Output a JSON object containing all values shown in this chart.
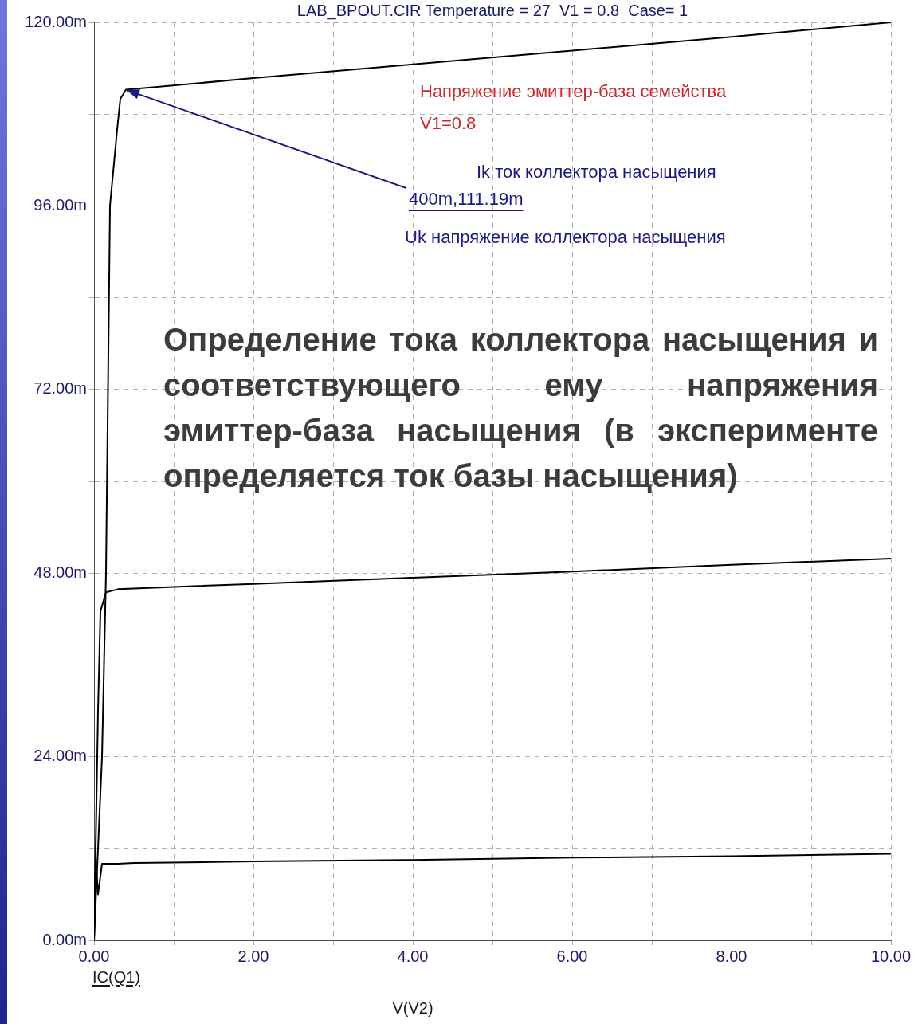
{
  "chart_data": {
    "type": "line",
    "title": "LAB_BPOUT.CIR Temperature = 27  V1 = 0.8  Case= 1",
    "xlabel": "V(V2)",
    "series": [
      {
        "color": "#000000",
        "x": [
          0,
          0.1,
          0.15,
          0.2,
          0.29,
          0.33,
          0.4,
          2,
          4,
          6,
          8,
          10
        ],
        "values": [
          0,
          24,
          48,
          96,
          106,
          110,
          111.19,
          112.7,
          114.5,
          116.3,
          118.1,
          120
        ]
      },
      {
        "color": "#000000",
        "x": [
          0,
          0.05,
          0.08,
          0.15,
          0.3,
          0.5,
          2,
          4,
          6,
          8,
          10
        ],
        "values": [
          0,
          30,
          43,
          45.5,
          45.9,
          46,
          46.6,
          47.4,
          48.2,
          49.1,
          49.9
        ]
      },
      {
        "color": "#000000",
        "x": [
          0,
          0.02,
          0.05,
          0.1,
          0.3,
          0.5,
          2,
          4,
          6,
          8,
          10
        ],
        "values": [
          0,
          11,
          6,
          10,
          10,
          10.1,
          10.3,
          10.5,
          10.8,
          11,
          11.3
        ]
      }
    ],
    "xlim": [
      0,
      10
    ],
    "ylim": [
      0,
      120
    ],
    "xticks": [
      {
        "value": 0,
        "label": "0.00"
      },
      {
        "value": 1,
        "label": null
      },
      {
        "value": 2,
        "label": "2.00"
      },
      {
        "value": 3,
        "label": null
      },
      {
        "value": 4,
        "label": "4.00"
      },
      {
        "value": 5,
        "label": null
      },
      {
        "value": 6,
        "label": "6.00"
      },
      {
        "value": 7,
        "label": null
      },
      {
        "value": 8,
        "label": "8.00"
      },
      {
        "value": 9,
        "label": null
      },
      {
        "value": 10,
        "label": "10.00"
      }
    ],
    "yticks": [
      {
        "value": 0,
        "label": "0.00m"
      },
      {
        "value": 12,
        "label": null
      },
      {
        "value": 24,
        "label": "24.00m"
      },
      {
        "value": 36,
        "label": null
      },
      {
        "value": 48,
        "label": "48.00m"
      },
      {
        "value": 60,
        "label": null
      },
      {
        "value": 72,
        "label": "72.00m"
      },
      {
        "value": 84,
        "label": null
      },
      {
        "value": 96,
        "label": "96.00m"
      },
      {
        "value": 108,
        "label": null
      },
      {
        "value": 120,
        "label": "120.00m"
      }
    ],
    "grid": true,
    "legend": false,
    "marker": "none",
    "line_style": "solid",
    "annotations": [
      "Напряжение эмиттер-база семейства",
      "V1=0.8",
      "Ik ток коллектора насыщения",
      {
        "text": "400m,111.19m",
        "x": 0.4,
        "y": 111.19
      },
      "Uk напряжение коллектора насыщения",
      "IC(Q1)",
      "Определение тока коллектора насыщения и соответствующего ему напряжения эмиттер-база насыщения (в эксперименте определяется ток базы насыщения)"
    ]
  }
}
